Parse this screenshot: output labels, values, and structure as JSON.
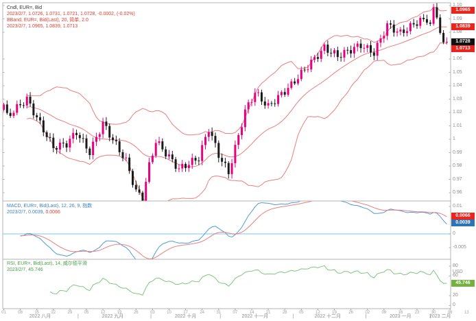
{
  "legends": {
    "main": {
      "line1": "Cndl, EUR=, Bid",
      "line2": "2023/2/7, 1.0726, 1.0731, 1.0721, 1.0728, -0.0002, (-0.02%)",
      "line3": "BBand, EUR=, Bid(Last), 20, 简单, 2.0",
      "line4": "2023/2/7, 1.0965, 1.0839, 1.0713"
    },
    "macd": {
      "line1": "MACD, EUR=, Bid(Last), 12, 26, 9, 指数",
      "line2_blue": "2023/2/7, 0.0039,",
      "line2_red": " 0.0066"
    },
    "rsi": {
      "line1": "RSI, EUR=, Bid(Last), 14, 威尔德平滑",
      "line2": "2023/2/7, 45.746"
    }
  },
  "colors": {
    "up": "#e6007d",
    "down": "#1a1a1a",
    "band": "#ec7d7d",
    "macd_line": "#4d9bd6",
    "signal_line": "#ec7d7d",
    "zero_line": "#a9d7ef",
    "rsi_line": "#7dc87d",
    "legend_red": "#e8392d",
    "legend_blue": "#3c7fd0",
    "legend_green": "#4aa24a",
    "axis_text": "#8c8c8c",
    "border": "#b3b3b3",
    "badge_red": "#e8251f",
    "badge_black": "#111111",
    "badge_blue": "#2e74b5",
    "badge_green": "#76b043"
  },
  "badges": {
    "price": [
      {
        "label": "1.0965",
        "value": 1.0965,
        "bg": "#e8251f"
      },
      {
        "label": "1.0839",
        "value": 1.0839,
        "bg": "#e8251f"
      },
      {
        "label": "1.0728",
        "value": 1.0728,
        "bg": "#111111"
      },
      {
        "label": "1.0713",
        "value": 1.0713,
        "bg": "#e8251f"
      }
    ],
    "macd": [
      {
        "label": "0.0066",
        "value": 0.0066,
        "bg": "#e8251f"
      },
      {
        "label": "0.0039",
        "value": 0.0039,
        "bg": "#2e74b5"
      }
    ],
    "rsi": [
      {
        "label": "45.746",
        "value": 45.746,
        "bg": "#76b043"
      }
    ]
  },
  "chart_data": {
    "type": "candlestick_with_indicators",
    "instrument": "EUR=",
    "quote_type": "Bid",
    "date_of_values": "2023/2/7",
    "ohlc_last": {
      "open": 1.0726,
      "high": 1.0731,
      "low": 1.0721,
      "close": 1.0728,
      "change": -0.0002,
      "change_pct": "-0.02%"
    },
    "period": "2022-08-01 to 2023-02-07 (daily)",
    "n_candles": 135,
    "close_anchors": [
      [
        0,
        1.026
      ],
      [
        1,
        1.017
      ],
      [
        7,
        1.03
      ],
      [
        10,
        1.016
      ],
      [
        15,
        0.994
      ],
      [
        19,
        0.9966
      ],
      [
        22,
        1.0054
      ],
      [
        26,
        0.9903
      ],
      [
        30,
        1.012
      ],
      [
        33,
        0.9997
      ],
      [
        37,
        0.9837
      ],
      [
        40,
        0.9609
      ],
      [
        42,
        0.956
      ],
      [
        44,
        0.9802
      ],
      [
        46,
        0.9987
      ],
      [
        53,
        0.9777
      ],
      [
        59,
        0.9861
      ],
      [
        62,
        1.0082
      ],
      [
        65,
        0.9884
      ],
      [
        68,
        0.975
      ],
      [
        73,
        1.021
      ],
      [
        76,
        1.035
      ],
      [
        80,
        1.0244
      ],
      [
        87,
        1.0406
      ],
      [
        90,
        1.0493
      ],
      [
        97,
        1.0683
      ],
      [
        101,
        1.0622
      ],
      [
        108,
        1.0705
      ],
      [
        112,
        1.0645
      ],
      [
        116,
        1.0853
      ],
      [
        120,
        1.0793
      ],
      [
        126,
        1.0891
      ],
      [
        129,
        1.0863
      ],
      [
        130,
        1.0987
      ],
      [
        131,
        1.091
      ],
      [
        132,
        1.0795
      ],
      [
        133,
        1.0725
      ],
      [
        134,
        1.0728
      ]
    ],
    "wiggle": {
      "amp": 0.0028,
      "freq": 1.9,
      "stop_after": 128
    },
    "candle_range": {
      "h_base": 0.0012,
      "h_amp": 0.0022,
      "h_freq": 2.17,
      "l_base": 0.0012,
      "l_amp": 0.0022,
      "l_freq": 3.07
    },
    "open_first": 1.022,
    "indicators": {
      "bollinger": {
        "window": 20,
        "type": "简单",
        "mult": 2.0,
        "last_upper": 1.0965,
        "last_mid": 1.0839,
        "last_lower": 1.0713
      },
      "macd": {
        "fast": 12,
        "slow": 26,
        "signal": 9,
        "type": "指数",
        "last_macd": 0.0039,
        "last_signal": 0.0066
      },
      "rsi": {
        "window": 14,
        "method": "威尔德平滑",
        "last": 45.746
      }
    },
    "axes": {
      "price": {
        "ticks": [
          [
            "1.10",
            1.1
          ],
          [
            "1.09",
            1.09
          ],
          [
            "1.08",
            1.08
          ],
          [
            "1.06",
            1.06
          ],
          [
            "1.05",
            1.05
          ],
          [
            "1.04",
            1.04
          ],
          [
            "1.03",
            1.03
          ],
          [
            "1.02",
            1.02
          ],
          [
            "1.01",
            1.01
          ],
          [
            "1",
            1.0
          ],
          [
            "0.99",
            0.99
          ],
          [
            "0.98",
            0.98
          ],
          [
            "0.97",
            0.97
          ],
          [
            "0.96",
            0.96
          ]
        ]
      },
      "macd": {
        "ticks": [
          [
            "0.01",
            0.01
          ],
          [
            "0",
            0
          ],
          [
            "-0.005",
            -0.005
          ]
        ]
      },
      "rsi": {
        "ticks": [
          [
            "80",
            80
          ],
          [
            "60",
            60
          ],
          [
            "20",
            20
          ],
          [
            "0",
            0
          ]
        ],
        "unit": "USD"
      }
    },
    "time_axis": {
      "day_labels": [
        [
          "01",
          0
        ],
        [
          "08",
          5
        ],
        [
          "15",
          10
        ],
        [
          "22",
          15
        ],
        [
          "29",
          20
        ],
        [
          "05",
          25
        ],
        [
          "12",
          30
        ],
        [
          "19",
          35
        ],
        [
          "26",
          40
        ],
        [
          "03",
          45
        ],
        [
          "10",
          50
        ],
        [
          "17",
          55
        ],
        [
          "24",
          60
        ],
        [
          "31",
          65
        ],
        [
          "07",
          70
        ],
        [
          "14",
          75
        ],
        [
          "21",
          80
        ],
        [
          "28",
          85
        ],
        [
          "05",
          90
        ],
        [
          "12",
          95
        ],
        [
          "19",
          100
        ],
        [
          "26",
          105
        ],
        [
          "02",
          110
        ],
        [
          "09",
          115
        ],
        [
          "16",
          120
        ],
        [
          "23",
          125
        ],
        [
          "30",
          130
        ],
        [
          "06",
          135
        ],
        [
          "13",
          140
        ]
      ],
      "month_labels": [
        [
          "2022 八月",
          11
        ],
        [
          "2022 九月",
          33
        ],
        [
          "2022 十月",
          55
        ],
        [
          "2022 十一月",
          76
        ],
        [
          "2022 十二月",
          98
        ],
        [
          "2023 一月",
          120
        ],
        [
          "2023 二月",
          132
        ]
      ],
      "month_separators": [
        22.5,
        44.5,
        65.5,
        87.5,
        109.5,
        129.0
      ]
    }
  }
}
